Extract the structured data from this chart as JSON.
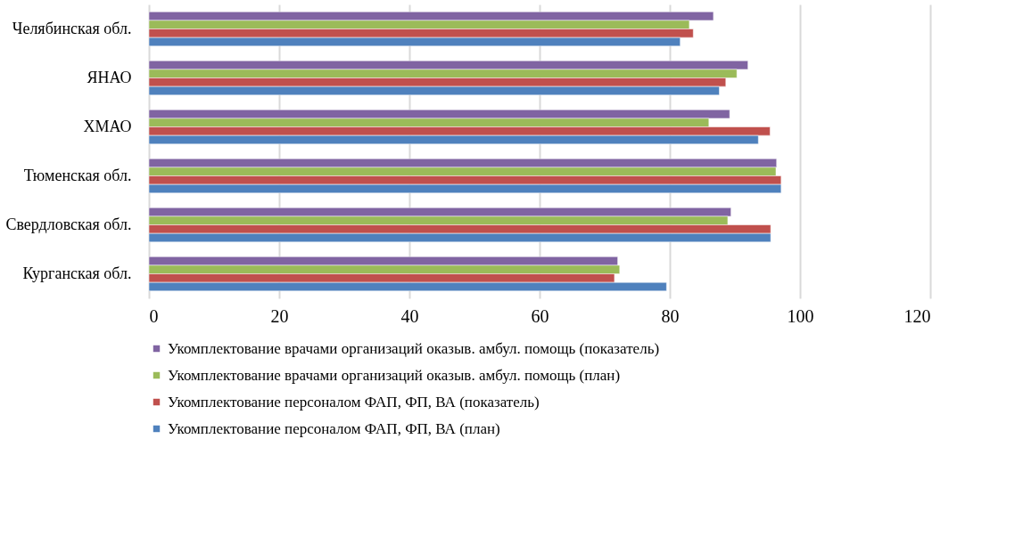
{
  "chart_data": {
    "type": "bar",
    "orientation": "horizontal",
    "categories": [
      "Челябинская обл.",
      "ЯНАО",
      "ХМАО",
      "Тюменская обл.",
      "Свердловская обл.",
      "Курганская обл."
    ],
    "series": [
      {
        "name": "Укомплектование врачами организаций оказыв. амбул. помощь (показатель)",
        "color": "#8064a2",
        "values": [
          86.7,
          92.0,
          89.2,
          96.4,
          89.4,
          72.0
        ]
      },
      {
        "name": "Укомплектование врачами организаций оказыв. амбул. помощь (план)",
        "color": "#9bbb59",
        "values": [
          83.0,
          90.3,
          86.0,
          96.3,
          88.9,
          72.3
        ]
      },
      {
        "name": "Укомплектование персоналом ФАП, ФП, ВА (показатель)",
        "color": "#c0504d",
        "values": [
          83.6,
          88.6,
          95.4,
          97.1,
          95.5,
          71.5
        ]
      },
      {
        "name": "Укомплектование персоналом ФАП, ФП, ВА (план)",
        "color": "#4f81bd",
        "values": [
          81.6,
          87.6,
          93.6,
          97.1,
          95.5,
          79.5
        ]
      }
    ],
    "xlim": [
      0,
      120
    ],
    "xticks": [
      0,
      20,
      40,
      60,
      80,
      100,
      120
    ],
    "grid": "x",
    "legend": "bottom"
  }
}
